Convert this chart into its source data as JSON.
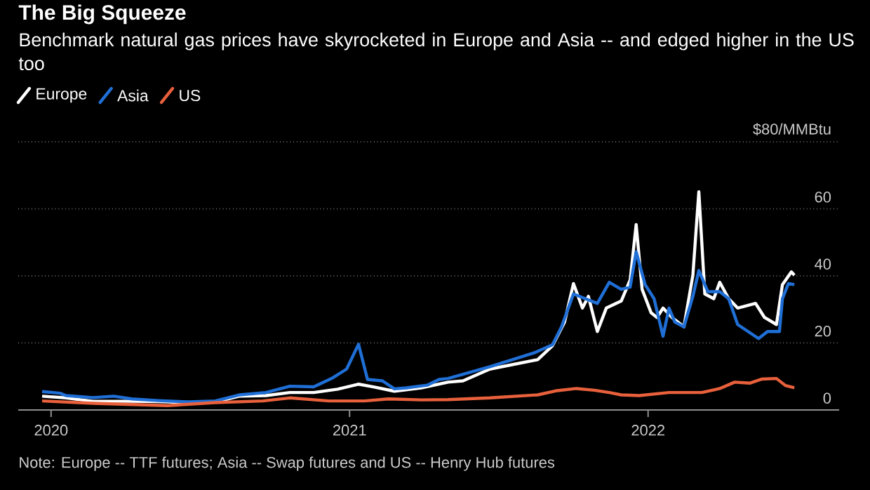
{
  "chart_data": {
    "type": "line",
    "title": "The Big Squeeze",
    "subtitle": "Benchmark natural gas prices have skyrocketed in Europe and Asia -- and edged higher in the US too",
    "annotations": [
      "Note: Europe -- TTF futures; Asia -- Swap futures and US -- Henry Hub futures"
    ],
    "xlim": [
      2019.89,
      2022.64
    ],
    "xticks": [
      2020,
      2021,
      2022
    ],
    "ylim": [
      0,
      80
    ],
    "yticks": [
      0,
      20,
      40,
      60,
      {
        "value": 80,
        "label": "$80/MMBtu"
      }
    ],
    "grid": "y",
    "legend": "top left",
    "series": [
      {
        "name": "Europe",
        "color": "#ffffff",
        "x": [
          2019.97,
          2020.05,
          2020.14,
          2020.27,
          2020.36,
          2020.46,
          2020.55,
          2020.63,
          2020.72,
          2020.8,
          2020.88,
          2020.96,
          2021.03,
          2021.08,
          2021.15,
          2021.24,
          2021.33,
          2021.38,
          2021.47,
          2021.63,
          2021.68,
          2021.72,
          2021.75,
          2021.78,
          2021.8,
          2021.83,
          2021.86,
          2021.91,
          2021.94,
          2021.96,
          2021.98,
          2022.01,
          2022.03,
          2022.05,
          2022.08,
          2022.12,
          2022.15,
          2022.17,
          2022.19,
          2022.22,
          2022.24,
          2022.27,
          2022.3,
          2022.36,
          2022.39,
          2022.43,
          2022.45,
          2022.48,
          2022.49
        ],
        "values": [
          4.1,
          3.6,
          2.6,
          2.6,
          2.5,
          2.2,
          2.4,
          4.1,
          4.3,
          5.2,
          5.2,
          6.2,
          7.7,
          6.9,
          5.6,
          6.6,
          8.3,
          8.7,
          12.2,
          15.0,
          19.2,
          26.2,
          37.7,
          30.4,
          33.9,
          23.4,
          30.4,
          32.5,
          38.8,
          55.3,
          36.0,
          29.0,
          27.6,
          30.4,
          27.6,
          24.8,
          40.2,
          65.1,
          34.6,
          33.2,
          38.1,
          33.2,
          30.4,
          31.8,
          27.6,
          25.5,
          37.4,
          41.2,
          40.2
        ]
      },
      {
        "name": "Asia",
        "color": "#1f6fd6",
        "x": [
          2019.97,
          2020.03,
          2020.05,
          2020.14,
          2020.21,
          2020.27,
          2020.36,
          2020.46,
          2020.55,
          2020.63,
          2020.72,
          2020.8,
          2020.88,
          2020.94,
          2020.99,
          2021.03,
          2021.06,
          2021.11,
          2021.15,
          2021.19,
          2021.26,
          2021.3,
          2021.33,
          2021.47,
          2021.62,
          2021.68,
          2021.71,
          2021.75,
          2021.79,
          2021.83,
          2021.87,
          2021.91,
          2021.94,
          2021.96,
          2021.99,
          2022.02,
          2022.05,
          2022.07,
          2022.09,
          2022.12,
          2022.15,
          2022.17,
          2022.2,
          2022.24,
          2022.27,
          2022.3,
          2022.37,
          2022.4,
          2022.44,
          2022.45,
          2022.47,
          2022.49
        ],
        "values": [
          5.5,
          5.0,
          4.3,
          3.7,
          4.1,
          3.3,
          2.8,
          2.4,
          2.7,
          4.5,
          5.2,
          7.1,
          6.9,
          9.4,
          12.2,
          19.6,
          9.1,
          8.7,
          6.3,
          6.6,
          7.4,
          9.1,
          9.4,
          12.9,
          17.1,
          19.5,
          24.8,
          34.6,
          33.2,
          31.8,
          38.1,
          36.0,
          36.7,
          47.2,
          37.4,
          33.2,
          22.0,
          30.4,
          26.2,
          24.8,
          33.9,
          41.6,
          35.3,
          35.3,
          33.2,
          25.5,
          21.3,
          23.4,
          23.4,
          33.2,
          37.7,
          37.4
        ]
      },
      {
        "name": "US",
        "color": "#e8603c",
        "x": [
          2019.97,
          2020.14,
          2020.39,
          2020.55,
          2020.71,
          2020.8,
          2020.93,
          2021.05,
          2021.13,
          2021.24,
          2021.33,
          2021.47,
          2021.63,
          2021.69,
          2021.76,
          2021.82,
          2021.87,
          2021.91,
          2021.97,
          2022.07,
          2022.18,
          2022.24,
          2022.29,
          2022.34,
          2022.38,
          2022.43,
          2022.46,
          2022.49
        ],
        "values": [
          2.7,
          2.0,
          1.3,
          2.2,
          2.7,
          3.6,
          2.7,
          2.7,
          3.3,
          3.0,
          3.1,
          3.6,
          4.5,
          5.7,
          6.4,
          5.9,
          5.2,
          4.5,
          4.3,
          5.2,
          5.2,
          6.4,
          8.3,
          8.0,
          9.2,
          9.4,
          7.3,
          6.6
        ]
      }
    ]
  }
}
